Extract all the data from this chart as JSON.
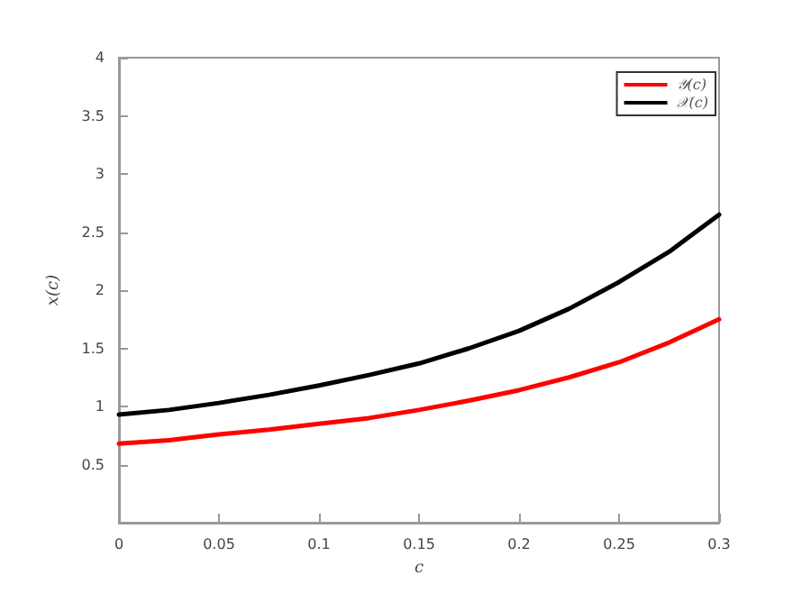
{
  "chart_data": {
    "type": "line",
    "xlabel": "c",
    "ylabel": "x(c)",
    "x": [
      0,
      0.025,
      0.05,
      0.075,
      0.1,
      0.125,
      0.15,
      0.175,
      0.2,
      0.225,
      0.25,
      0.275,
      0.3
    ],
    "series": [
      {
        "name": "𝒴(c)",
        "color": "#ff0000",
        "values": [
          0.68,
          0.71,
          0.76,
          0.8,
          0.85,
          0.9,
          0.97,
          1.05,
          1.14,
          1.25,
          1.38,
          1.55,
          1.75
        ]
      },
      {
        "name": "𝒳(c)",
        "color": "#000000",
        "values": [
          0.93,
          0.97,
          1.03,
          1.1,
          1.18,
          1.27,
          1.37,
          1.5,
          1.65,
          1.84,
          2.07,
          2.33,
          2.65
        ]
      }
    ],
    "xlim": [
      0,
      0.3
    ],
    "xticks": [
      0,
      0.05,
      0.1,
      0.15,
      0.2,
      0.25,
      0.3
    ],
    "ylim": [
      0,
      4
    ],
    "yticks": [
      0.5,
      1,
      1.5,
      2,
      2.5,
      3,
      3.5,
      4
    ],
    "grid": false,
    "legend": "top right",
    "marker": "none",
    "line_style": "solid"
  }
}
